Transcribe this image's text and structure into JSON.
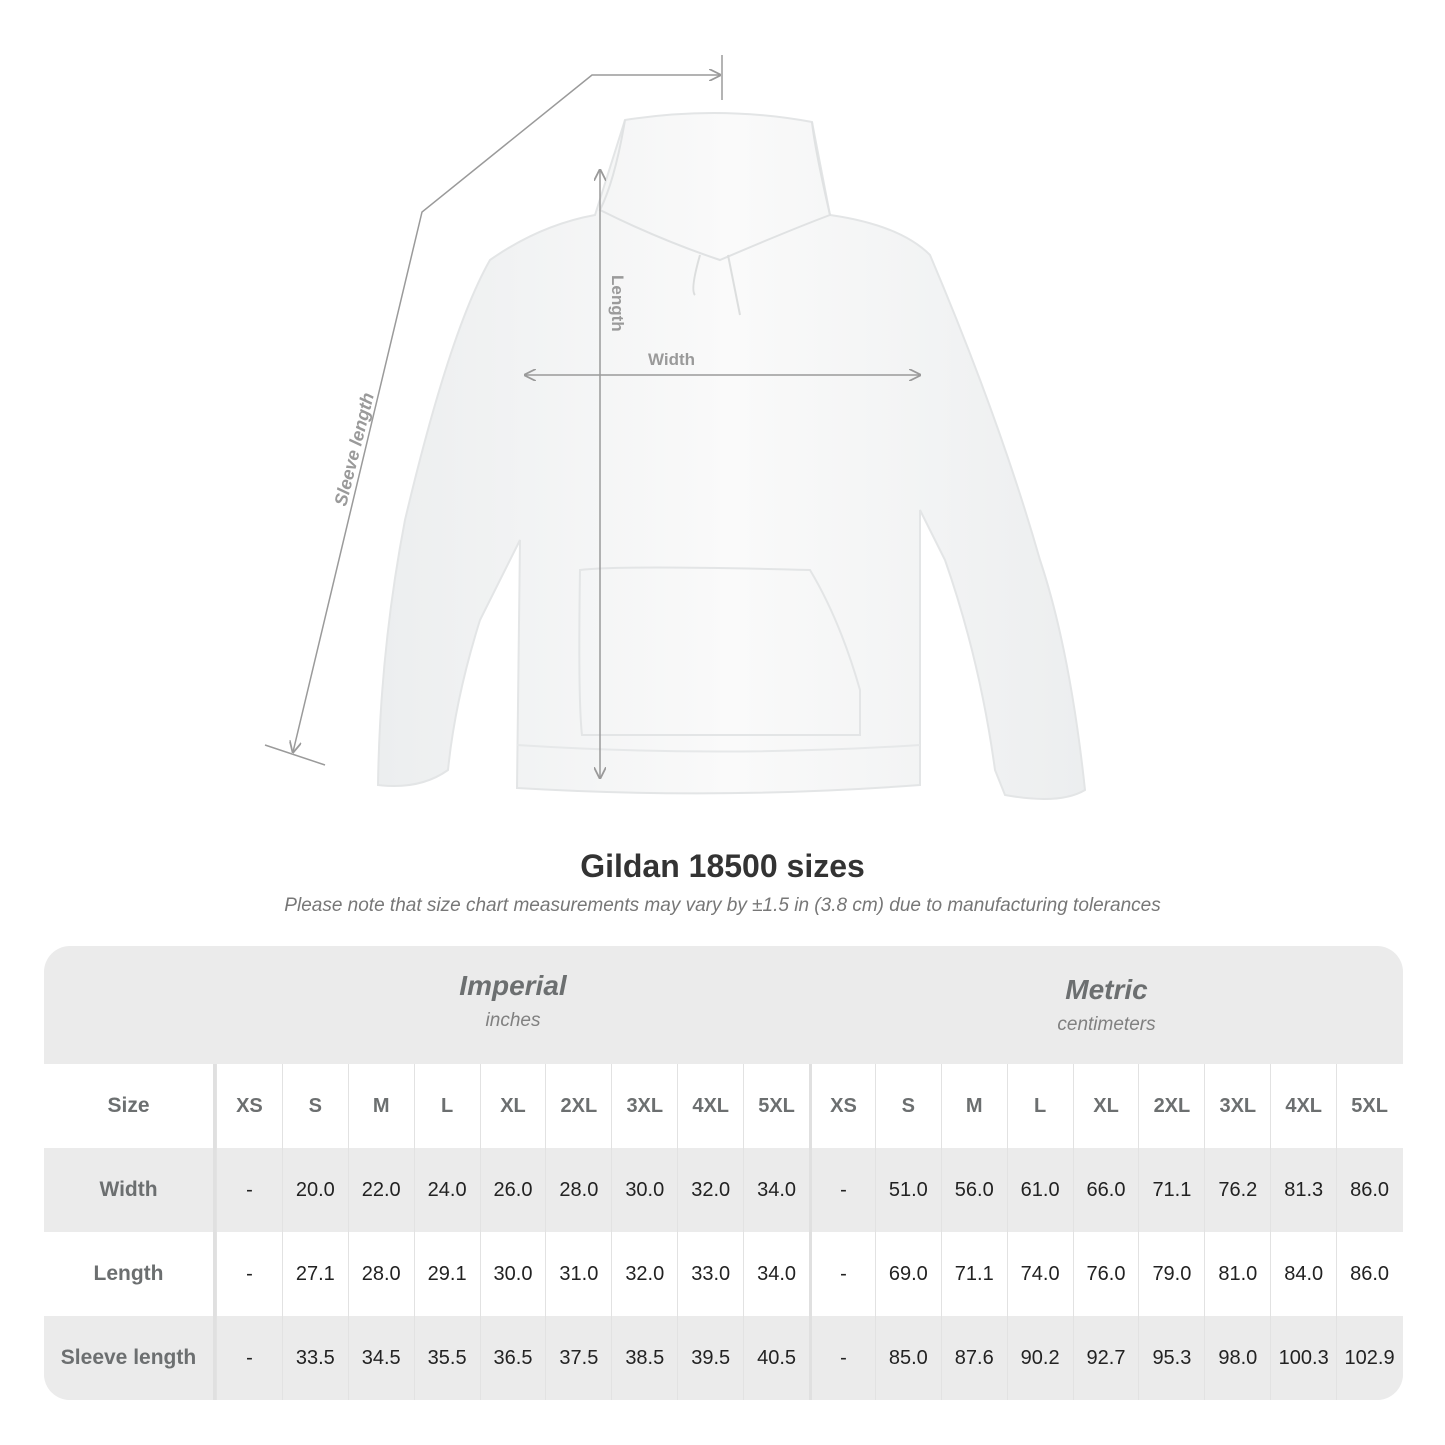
{
  "illustration": {
    "labels": {
      "length": "Length",
      "width": "Width",
      "sleeve": "Sleeve length"
    },
    "garment_color": "#ffffff",
    "measure_line_color": "#9a9a9a"
  },
  "title": "Gildan 18500 sizes",
  "note": "Please note that size chart measurements may vary by ±1.5 in (3.8 cm) due to manufacturing tolerances",
  "table": {
    "imperial": {
      "label": "Imperial",
      "unit": "inches"
    },
    "metric": {
      "label": "Metric",
      "unit": "centimeters"
    },
    "size_label": "Size",
    "sizes": [
      "XS",
      "S",
      "M",
      "L",
      "XL",
      "2XL",
      "3XL",
      "4XL",
      "5XL"
    ],
    "rows": [
      {
        "label": "Width",
        "imperial": [
          "-",
          "20.0",
          "22.0",
          "24.0",
          "26.0",
          "28.0",
          "30.0",
          "32.0",
          "34.0"
        ],
        "metric": [
          "-",
          "51.0",
          "56.0",
          "61.0",
          "66.0",
          "71.1",
          "76.2",
          "81.3",
          "86.0"
        ]
      },
      {
        "label": "Length",
        "imperial": [
          "-",
          "27.1",
          "28.0",
          "29.1",
          "30.0",
          "31.0",
          "32.0",
          "33.0",
          "34.0"
        ],
        "metric": [
          "-",
          "69.0",
          "71.1",
          "74.0",
          "76.0",
          "79.0",
          "81.0",
          "84.0",
          "86.0"
        ]
      },
      {
        "label": "Sleeve length",
        "imperial": [
          "-",
          "33.5",
          "34.5",
          "35.5",
          "36.5",
          "37.5",
          "38.5",
          "39.5",
          "40.5"
        ],
        "metric": [
          "-",
          "85.0",
          "87.6",
          "90.2",
          "92.7",
          "95.3",
          "98.0",
          "100.3",
          "102.9"
        ]
      }
    ]
  }
}
